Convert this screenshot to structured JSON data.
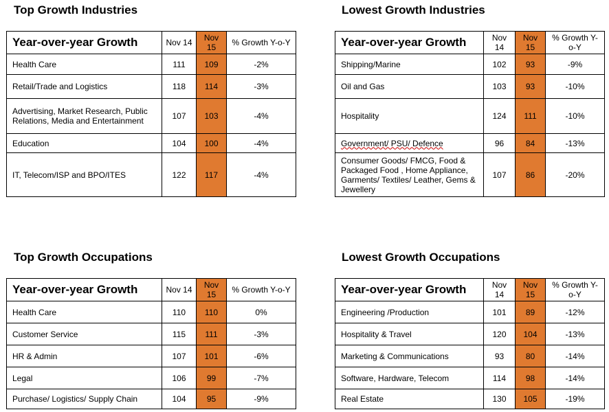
{
  "colors": {
    "highlight": "#E07A30",
    "border": "#000000",
    "background": "#ffffff"
  },
  "columns": {
    "heading": "Year-over-year Growth",
    "nov14": "Nov 14",
    "nov15": "Nov 15",
    "growth": "% Growth Y-o-Y"
  },
  "panels": {
    "top_industries": {
      "title": "Top Growth Industries",
      "rows": [
        {
          "label": "Health Care",
          "nov14": "111",
          "nov15": "109",
          "growth": "-2%"
        },
        {
          "label": "Retail/Trade and Logistics",
          "nov14": "118",
          "nov15": "114",
          "growth": "-3%"
        },
        {
          "label": "Advertising, Market Research, Public Relations, Media and Entertainment",
          "nov14": "107",
          "nov15": "103",
          "growth": "-4%"
        },
        {
          "label": "Education",
          "nov14": "104",
          "nov15": "100",
          "growth": "-4%"
        },
        {
          "label": "IT, Telecom/ISP and BPO/ITES",
          "nov14": "122",
          "nov15": "117",
          "growth": "-4%"
        }
      ]
    },
    "lowest_industries": {
      "title": "Lowest Growth Industries",
      "rows": [
        {
          "label": "Shipping/Marine",
          "nov14": "102",
          "nov15": "93",
          "growth": "-9%"
        },
        {
          "label": "Oil and Gas",
          "nov14": "103",
          "nov15": "93",
          "growth": "-10%"
        },
        {
          "label": "Hospitality",
          "nov14": "124",
          "nov15": "111",
          "growth": "-10%"
        },
        {
          "label": "Government/ PSU/ Defence",
          "nov14": "96",
          "nov15": "84",
          "growth": "-13%"
        },
        {
          "label": "Consumer Goods/ FMCG, Food & Packaged Food , Home Appliance, Garments/ Textiles/ Leather, Gems & Jewellery",
          "nov14": "107",
          "nov15": "86",
          "growth": "-20%"
        }
      ]
    },
    "top_occupations": {
      "title": "Top Growth Occupations",
      "rows": [
        {
          "label": "Health Care",
          "nov14": "110",
          "nov15": "110",
          "growth": "0%"
        },
        {
          "label": "Customer Service",
          "nov14": "115",
          "nov15": "111",
          "growth": "-3%"
        },
        {
          "label": "HR & Admin",
          "nov14": "107",
          "nov15": "101",
          "growth": "-6%"
        },
        {
          "label": "Legal",
          "nov14": "106",
          "nov15": "99",
          "growth": "-7%"
        },
        {
          "label": "Purchase/ Logistics/ Supply Chain",
          "nov14": "104",
          "nov15": "95",
          "growth": "-9%"
        }
      ]
    },
    "lowest_occupations": {
      "title": "Lowest Growth Occupations",
      "rows": [
        {
          "label": "Engineering /Production",
          "nov14": "101",
          "nov15": "89",
          "growth": "-12%"
        },
        {
          "label": "Hospitality & Travel",
          "nov14": "120",
          "nov15": "104",
          "growth": "-13%"
        },
        {
          "label": "Marketing & Communications",
          "nov14": "93",
          "nov15": "80",
          "growth": "-14%"
        },
        {
          "label": "Software, Hardware, Telecom",
          "nov14": "114",
          "nov15": "98",
          "growth": "-14%"
        },
        {
          "label": "Real Estate",
          "nov14": "130",
          "nov15": "105",
          "growth": "-19%"
        }
      ]
    }
  }
}
